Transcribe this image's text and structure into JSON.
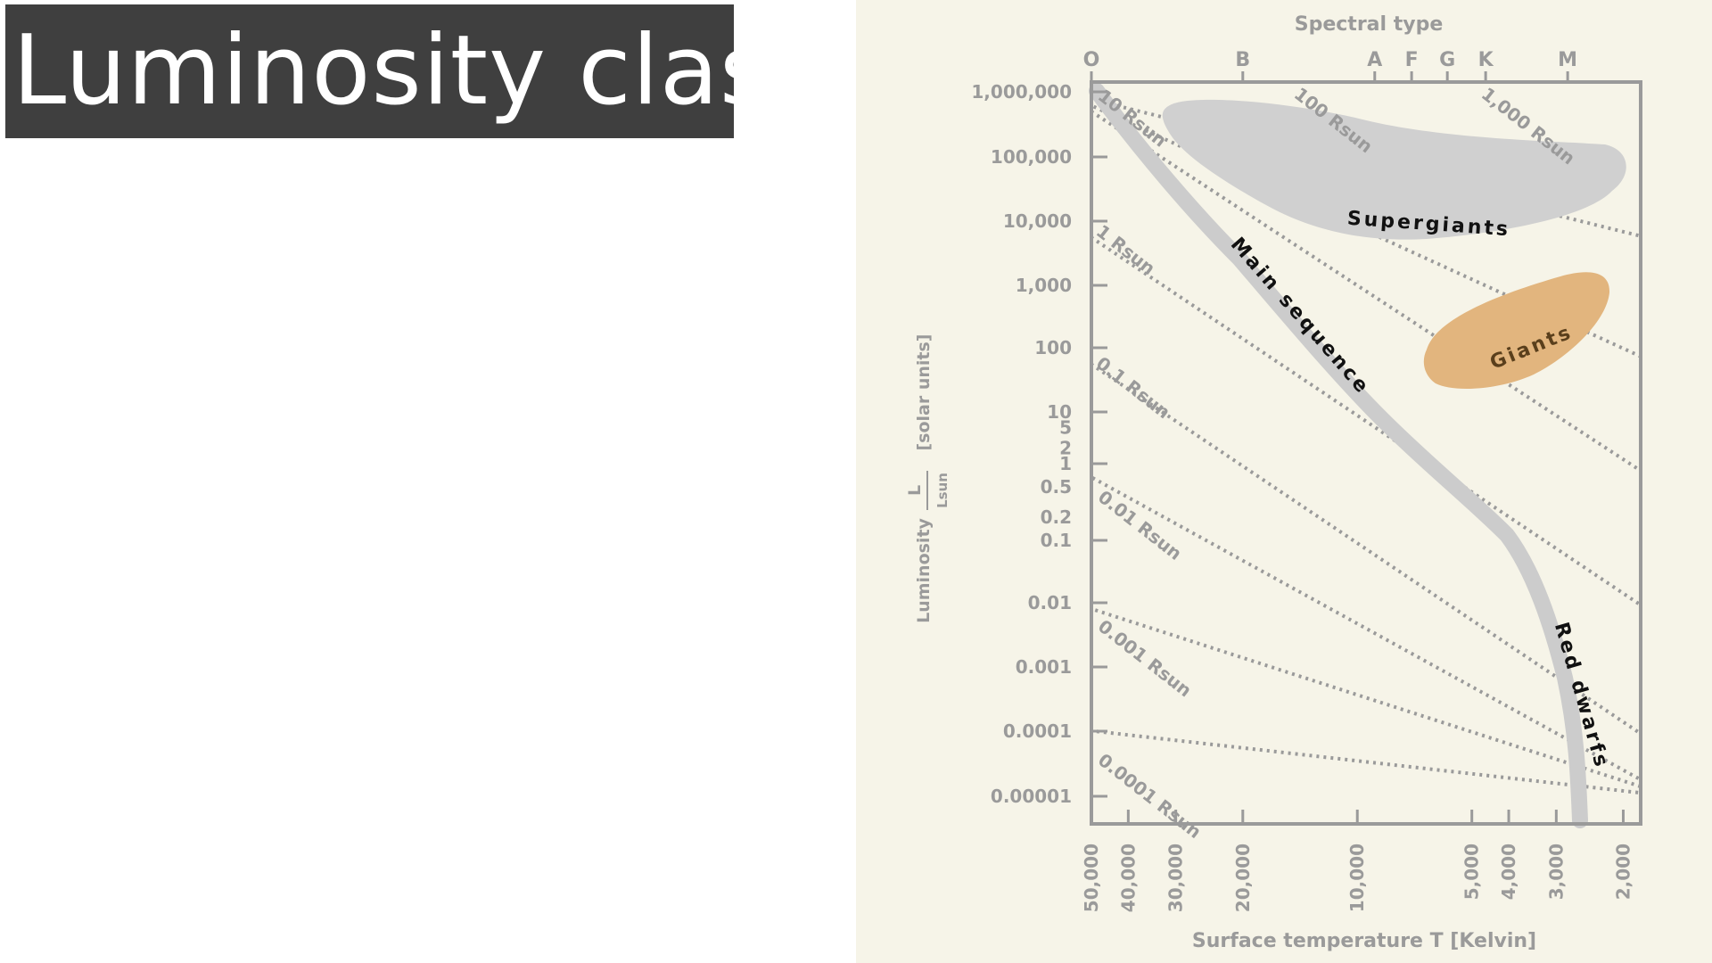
{
  "slide": {
    "title": "Luminosity class"
  },
  "chart_data": {
    "type": "diagram",
    "x_axis": {
      "label": "Surface temperature T [Kelvin]",
      "ticks": [
        {
          "value": 50000,
          "label": "50,000"
        },
        {
          "value": 40000,
          "label": "40,000"
        },
        {
          "value": 30000,
          "label": "30,000"
        },
        {
          "value": 20000,
          "label": "20,000"
        },
        {
          "value": 10000,
          "label": "10,000"
        },
        {
          "value": 5000,
          "label": "5,000"
        },
        {
          "value": 4000,
          "label": "4,000"
        },
        {
          "value": 3000,
          "label": "3,000"
        },
        {
          "value": 2000,
          "label": "2,000"
        }
      ],
      "scale": "log-reversed",
      "range": [
        50000,
        1800
      ]
    },
    "top_axis": {
      "label": "Spectral type",
      "types": [
        {
          "label": "O",
          "temp": 50000
        },
        {
          "label": "B",
          "temp": 20000
        },
        {
          "label": "A",
          "temp": 9000
        },
        {
          "label": "F",
          "temp": 7200
        },
        {
          "label": "G",
          "temp": 5800
        },
        {
          "label": "K",
          "temp": 4600
        },
        {
          "label": "M",
          "temp": 2800
        }
      ]
    },
    "y_axis": {
      "label_main": "Luminosity",
      "fraction_num": "L",
      "fraction_den": "Lsun",
      "label_unit": "[solar units]",
      "scale": "log",
      "ticks": [
        {
          "value": 1000000,
          "label": "1,000,000"
        },
        {
          "value": 100000,
          "label": "100,000"
        },
        {
          "value": 10000,
          "label": "10,000"
        },
        {
          "value": 1000,
          "label": "1,000"
        },
        {
          "value": 100,
          "label": "100"
        },
        {
          "value": 10,
          "label": "10"
        },
        {
          "value": 5,
          "label": "5"
        },
        {
          "value": 2,
          "label": "2"
        },
        {
          "value": 1,
          "label": "1"
        },
        {
          "value": 0.5,
          "label": "0.5"
        },
        {
          "value": 0.2,
          "label": "0.2"
        },
        {
          "value": 0.1,
          "label": "0.1"
        },
        {
          "value": 0.01,
          "label": "0.01"
        },
        {
          "value": 0.001,
          "label": "0.001"
        },
        {
          "value": 0.0001,
          "label": "0.0001"
        },
        {
          "value": 1e-05,
          "label": "0.00001"
        }
      ]
    },
    "radius_lines": [
      {
        "label": "0.0001 Rsun",
        "radius": 0.0001
      },
      {
        "label": "0.001 Rsun",
        "radius": 0.001
      },
      {
        "label": "0.01 Rsun",
        "radius": 0.01
      },
      {
        "label": "0.1 Rsun",
        "radius": 0.1
      },
      {
        "label": "1 Rsun",
        "radius": 1
      },
      {
        "label": "10 Rsun",
        "radius": 10
      },
      {
        "label": "100 Rsun",
        "radius": 100
      },
      {
        "label": "1,000 Rsun",
        "radius": 1000
      }
    ],
    "regions": [
      {
        "name": "Main sequence",
        "label": "Main sequence"
      },
      {
        "name": "Supergiants",
        "label": "Supergiants"
      },
      {
        "name": "Giants",
        "label": "Giants"
      },
      {
        "name": "Red dwarfs",
        "label": "Red dwarfs"
      }
    ],
    "colors": {
      "background": "#f6f4e8",
      "axis": "#9a9a9a",
      "main_sequence": "#cccccc",
      "supergiants": "#d0d0d0",
      "giants": "#e2b57e",
      "giants_text": "#5a3f1c"
    }
  }
}
